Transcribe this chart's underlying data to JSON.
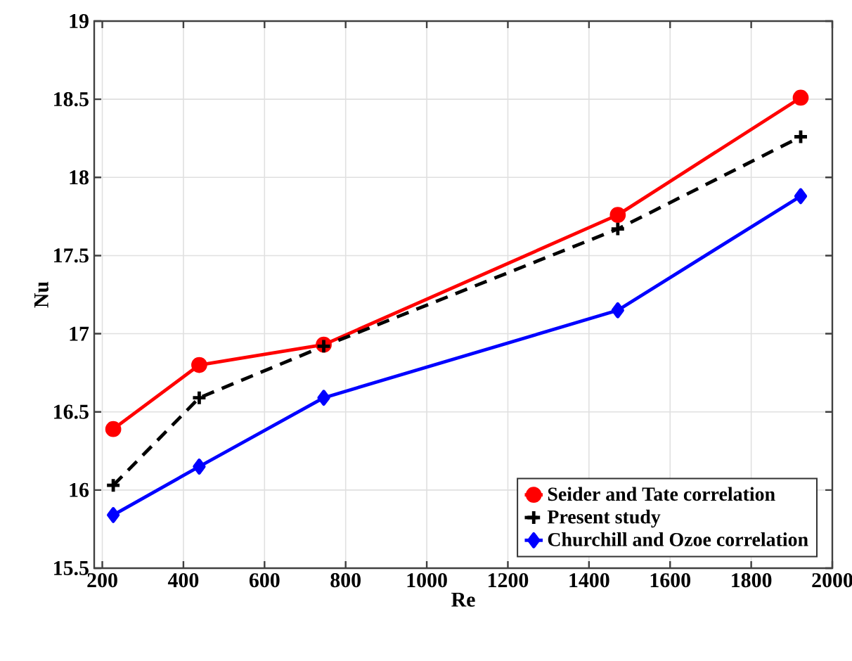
{
  "chart_data": {
    "type": "line",
    "xlabel": "Re",
    "ylabel": "Nu",
    "x": [
      227,
      439,
      746,
      1471,
      1922
    ],
    "series": [
      {
        "name": "Seider and Tate correlation",
        "color": "#ff0000",
        "marker": "circle",
        "line_style": "solid",
        "values": [
          16.39,
          16.8,
          16.93,
          17.76,
          18.51
        ]
      },
      {
        "name": "Present study",
        "color": "#000000",
        "marker": "cross",
        "line_style": "dashed",
        "values": [
          16.03,
          16.59,
          16.92,
          17.67,
          18.26
        ]
      },
      {
        "name": "Churchill and Ozoe correlation",
        "color": "#0000ff",
        "marker": "diamond",
        "line_style": "solid",
        "values": [
          15.84,
          16.15,
          16.59,
          17.15,
          17.88
        ]
      }
    ],
    "xlim": [
      180,
      2000
    ],
    "ylim": [
      15.5,
      19
    ],
    "xticks": [
      200,
      400,
      600,
      800,
      1000,
      1200,
      1400,
      1600,
      1800,
      2000
    ],
    "yticks": [
      15.5,
      16,
      16.5,
      17,
      17.5,
      18,
      18.5,
      19
    ],
    "grid": true,
    "legend": "bottom right"
  }
}
